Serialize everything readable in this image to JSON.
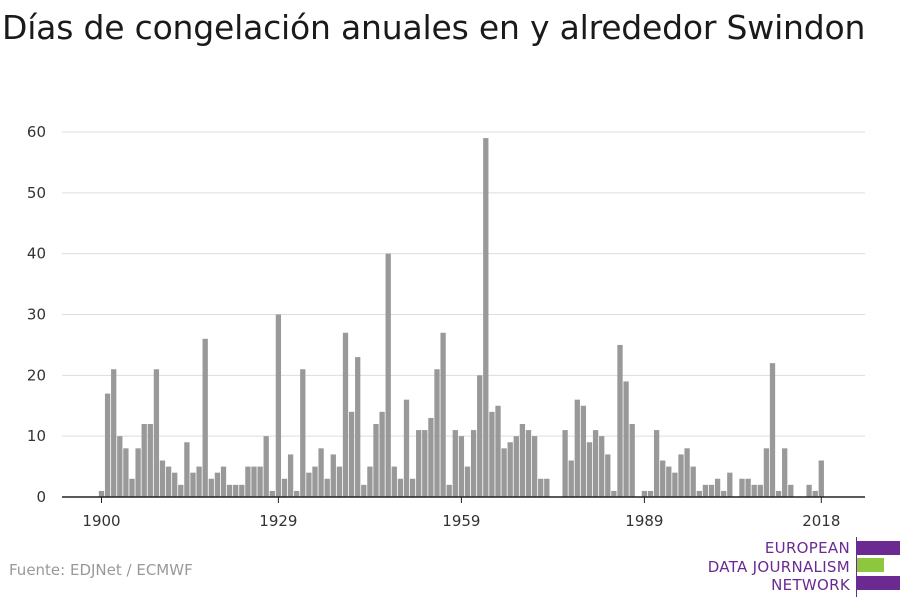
{
  "title": "Días de congelación anuales en y alrededor Swindon",
  "source": "Fuente: EDJNet / ECMWF",
  "logo": {
    "lines": [
      "EUROPEAN",
      "DATA JOURNALISM",
      "NETWORK"
    ],
    "colors": {
      "purple": "#6a2a91",
      "green": "#8dc63f"
    }
  },
  "chart_data": {
    "type": "bar",
    "title": "Días de congelación anuales en y alrededor Swindon",
    "xlabel": "",
    "ylabel": "",
    "ylim": [
      0,
      60
    ],
    "yticks": [
      0,
      10,
      20,
      30,
      40,
      50,
      60
    ],
    "xticks": [
      1900,
      1929,
      1959,
      1989,
      2018
    ],
    "grid": true,
    "bar_color": "#999999",
    "categories": [
      1900,
      1901,
      1902,
      1903,
      1904,
      1905,
      1906,
      1907,
      1908,
      1909,
      1910,
      1911,
      1912,
      1913,
      1914,
      1915,
      1916,
      1917,
      1918,
      1919,
      1920,
      1921,
      1922,
      1923,
      1924,
      1925,
      1926,
      1927,
      1928,
      1929,
      1930,
      1931,
      1932,
      1933,
      1934,
      1935,
      1936,
      1937,
      1938,
      1939,
      1940,
      1941,
      1942,
      1943,
      1944,
      1945,
      1946,
      1947,
      1948,
      1949,
      1950,
      1951,
      1952,
      1953,
      1954,
      1955,
      1956,
      1957,
      1958,
      1959,
      1960,
      1961,
      1962,
      1963,
      1964,
      1965,
      1966,
      1967,
      1968,
      1969,
      1970,
      1971,
      1972,
      1973,
      1974,
      1975,
      1976,
      1977,
      1978,
      1979,
      1980,
      1981,
      1982,
      1983,
      1984,
      1985,
      1986,
      1987,
      1988,
      1989,
      1990,
      1991,
      1992,
      1993,
      1994,
      1995,
      1996,
      1997,
      1998,
      1999,
      2000,
      2001,
      2002,
      2003,
      2004,
      2005,
      2006,
      2007,
      2008,
      2009,
      2010,
      2011,
      2012,
      2013,
      2014,
      2015,
      2016,
      2017,
      2018,
      2019,
      2020
    ],
    "values": [
      1,
      17,
      21,
      10,
      8,
      3,
      8,
      12,
      12,
      21,
      6,
      5,
      4,
      2,
      9,
      4,
      5,
      26,
      3,
      4,
      5,
      2,
      2,
      2,
      5,
      5,
      5,
      10,
      1,
      30,
      3,
      7,
      1,
      21,
      4,
      5,
      8,
      3,
      7,
      5,
      27,
      14,
      23,
      2,
      5,
      12,
      14,
      40,
      5,
      3,
      16,
      3,
      11,
      11,
      13,
      21,
      27,
      2,
      11,
      10,
      5,
      11,
      20,
      59,
      14,
      15,
      8,
      9,
      10,
      12,
      11,
      10,
      3,
      3,
      0,
      0,
      11,
      6,
      16,
      15,
      9,
      11,
      10,
      7,
      1,
      25,
      19,
      12,
      0,
      1,
      1,
      11,
      6,
      5,
      4,
      7,
      8,
      5,
      1,
      2,
      2,
      3,
      1,
      4,
      0,
      3,
      3,
      2,
      2,
      8,
      22,
      1,
      8,
      2,
      0,
      0,
      2,
      1,
      6,
      0,
      0
    ]
  }
}
